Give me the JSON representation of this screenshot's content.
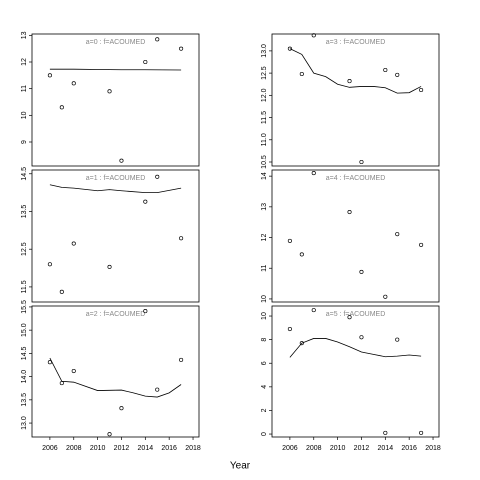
{
  "chart_data": [
    {
      "type": "scatter",
      "title": "a=0 : f=ACOUMED",
      "xlim": [
        2004.5,
        2018.5
      ],
      "ylim": [
        8.1,
        13.05
      ],
      "yticks": [
        9,
        10,
        11,
        12,
        13
      ],
      "x": [
        2006,
        2007,
        2008,
        2011,
        2012,
        2014,
        2015,
        2017
      ],
      "values": [
        11.5,
        10.3,
        11.2,
        10.9,
        8.3,
        12.0,
        12.85,
        12.5
      ],
      "fit": {
        "x": [
          2006,
          2008,
          2010,
          2012,
          2014,
          2017
        ],
        "values": [
          11.73,
          11.73,
          11.72,
          11.71,
          11.71,
          11.7
        ]
      }
    },
    {
      "type": "scatter",
      "title": "a=1 : f=ACOUMED",
      "xlim": [
        2004.5,
        2018.5
      ],
      "ylim": [
        11.1,
        14.6
      ],
      "yticks": [
        11.5,
        12.5,
        13.5,
        14.5
      ],
      "x": [
        2006,
        2007,
        2008,
        2011,
        2014,
        2015,
        2017
      ],
      "values": [
        12.1,
        11.37,
        12.65,
        12.03,
        13.76,
        14.42,
        12.79
      ],
      "fit": {
        "x": [
          2006,
          2007,
          2008,
          2010,
          2011,
          2012,
          2014,
          2015,
          2017
        ],
        "values": [
          14.21,
          14.14,
          14.12,
          14.05,
          14.08,
          14.05,
          14.0,
          14.0,
          14.12
        ]
      }
    },
    {
      "type": "scatter",
      "title": "a=2 : f=ACOUMED",
      "xlim": [
        2004.5,
        2018.5
      ],
      "ylim": [
        12.7,
        15.52
      ],
      "xticks": [
        2006,
        2008,
        2010,
        2012,
        2014,
        2016,
        2018
      ],
      "yticks": [
        {
          "value": 13,
          "label": "13.0"
        },
        13.5,
        {
          "value": 14,
          "label": "14.0"
        },
        14.5,
        {
          "value": 15,
          "label": "15.0"
        },
        15.5
      ],
      "x": [
        2006,
        2007,
        2008,
        2011,
        2012,
        2014,
        2015,
        2017
      ],
      "values": [
        14.31,
        13.86,
        14.12,
        12.76,
        13.32,
        15.41,
        13.72,
        14.36
      ],
      "fit": {
        "x": [
          2006,
          2007,
          2008,
          2010,
          2012,
          2013,
          2014,
          2015,
          2016,
          2017
        ],
        "values": [
          14.4,
          13.9,
          13.88,
          13.7,
          13.71,
          13.65,
          13.58,
          13.56,
          13.65,
          13.83
        ]
      }
    },
    {
      "type": "scatter",
      "title": "a=3 : f=ACOUMED",
      "xlim": [
        2004.5,
        2018.5
      ],
      "ylim": [
        10.41,
        13.38
      ],
      "yticks": [
        10.5,
        {
          "value": 11,
          "label": "11.0"
        },
        11.5,
        {
          "value": 12,
          "label": "12.0"
        },
        12.5,
        {
          "value": 13,
          "label": "13.0"
        }
      ],
      "x": [
        2006,
        2007,
        2008,
        2011,
        2012,
        2014,
        2015,
        2017
      ],
      "values": [
        13.05,
        12.48,
        13.35,
        12.32,
        10.5,
        12.57,
        12.46,
        12.12
      ],
      "fit": {
        "x": [
          2006,
          2007,
          2008,
          2009,
          2010,
          2011,
          2012,
          2013,
          2014,
          2015,
          2016,
          2017
        ],
        "values": [
          13.05,
          12.92,
          12.5,
          12.42,
          12.25,
          12.18,
          12.2,
          12.2,
          12.17,
          12.05,
          12.06,
          12.2
        ]
      }
    },
    {
      "type": "scatter",
      "title": "a=4 : f=ACOUMED",
      "xlim": [
        2004.5,
        2018.5
      ],
      "ylim": [
        9.9,
        14.2
      ],
      "yticks": [
        10,
        11,
        12,
        13,
        14
      ],
      "x": [
        2006,
        2007,
        2008,
        2011,
        2012,
        2014,
        2015,
        2017
      ],
      "values": [
        11.89,
        11.45,
        14.1,
        12.83,
        10.88,
        10.07,
        12.11,
        11.76
      ]
    },
    {
      "type": "scatter",
      "title": "a=5 : f=ACOUMED",
      "xlim": [
        2004.5,
        2018.5
      ],
      "ylim": [
        -0.25,
        10.85
      ],
      "xticks": [
        2006,
        2008,
        2010,
        2012,
        2014,
        2016,
        2018
      ],
      "yticks": [
        0,
        2,
        4,
        6,
        8,
        10
      ],
      "x": [
        2006,
        2007,
        2008,
        2011,
        2012,
        2014,
        2015,
        2017
      ],
      "values": [
        8.9,
        7.7,
        10.5,
        9.9,
        8.2,
        0.1,
        8.0,
        0.1
      ],
      "fit": {
        "x": [
          2006,
          2007,
          2008,
          2009,
          2010,
          2011,
          2012,
          2013,
          2014,
          2015,
          2016,
          2017
        ],
        "values": [
          6.5,
          7.7,
          8.1,
          8.1,
          7.8,
          7.4,
          6.95,
          6.75,
          6.55,
          6.6,
          6.7,
          6.6
        ]
      }
    }
  ],
  "xlabel": "Year"
}
